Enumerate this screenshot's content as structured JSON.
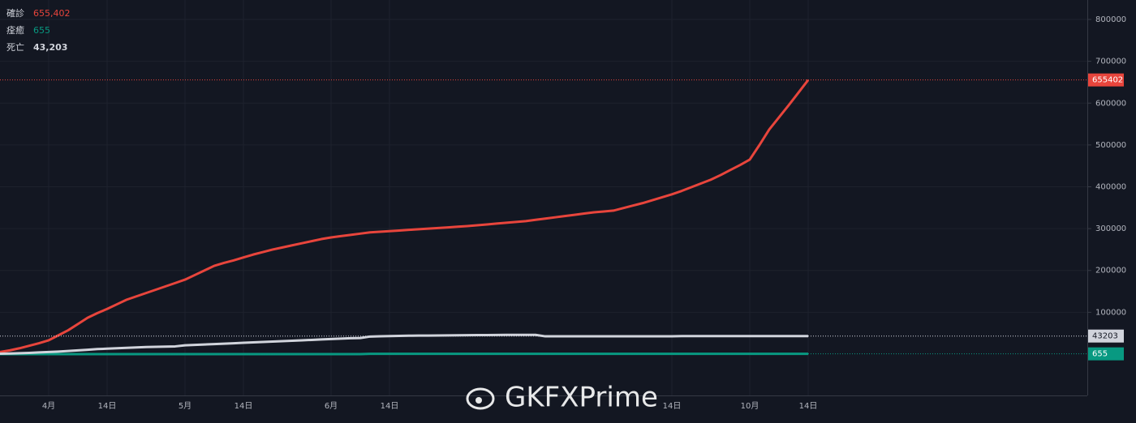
{
  "chart_data": {
    "type": "line",
    "categories": [
      null,
      null,
      null,
      null,
      null,
      "4月",
      null,
      null,
      null,
      null,
      null,
      "14日",
      null,
      null,
      null,
      null,
      null,
      null,
      null,
      "5月",
      null,
      null,
      null,
      null,
      null,
      "14日",
      null,
      null,
      null,
      null,
      null,
      null,
      null,
      null,
      "6月",
      null,
      null,
      null,
      null,
      null,
      "14日",
      null,
      null,
      null,
      null,
      null,
      null,
      null,
      null,
      null,
      null,
      null,
      null,
      null,
      null,
      null,
      null,
      null,
      null,
      null,
      null,
      null,
      null,
      null,
      null,
      null,
      null,
      null,
      null,
      "14日",
      null,
      null,
      null,
      null,
      null,
      null,
      null,
      "10月",
      null,
      null,
      null,
      null,
      null,
      "14日"
    ],
    "series": [
      {
        "name": "確診",
        "color": "#e8453c",
        "value_label": "655,402",
        "values": [
          5000,
          9000,
          14000,
          20000,
          26000,
          33000,
          45000,
          57000,
          72000,
          87000,
          98000,
          108000,
          119000,
          130000,
          138000,
          146000,
          154000,
          162000,
          170000,
          178000,
          189000,
          200000,
          211000,
          218000,
          224000,
          231000,
          238000,
          244000,
          250000,
          255000,
          260000,
          265000,
          270000,
          275000,
          279000,
          282000,
          285000,
          288000,
          291000,
          292500,
          294000,
          295500,
          297000,
          298500,
          300000,
          301500,
          303000,
          304500,
          306000,
          308000,
          310000,
          312000,
          314000,
          316000,
          318000,
          321000,
          324000,
          327000,
          330000,
          333000,
          336000,
          339000,
          341000,
          343000,
          349000,
          355000,
          361000,
          368000,
          375000,
          382000,
          390000,
          399000,
          408000,
          417000,
          428000,
          440000,
          452000,
          465000,
          500000,
          537000,
          566000,
          595000,
          625000,
          655402
        ]
      },
      {
        "name": "痊癒",
        "color": "#089981",
        "value_label": "655",
        "values": [
          100,
          100,
          100,
          100,
          100,
          100,
          100,
          100,
          100,
          100,
          100,
          100,
          100,
          100,
          100,
          100,
          100,
          100,
          100,
          100,
          100,
          100,
          100,
          100,
          100,
          100,
          100,
          100,
          100,
          100,
          100,
          100,
          100,
          100,
          100,
          100,
          100,
          100,
          655,
          655,
          655,
          655,
          655,
          655,
          655,
          655,
          655,
          655,
          655,
          655,
          655,
          655,
          655,
          655,
          655,
          655,
          655,
          655,
          655,
          655,
          655,
          655,
          655,
          655,
          655,
          655,
          655,
          655,
          655,
          655,
          655,
          655,
          655,
          655,
          655,
          655,
          655,
          655,
          655,
          655,
          655,
          655,
          655,
          655
        ]
      },
      {
        "name": "死亡",
        "color": "#d1d4dc",
        "value_label": "43,203",
        "values": [
          1000,
          1500,
          2200,
          3000,
          4000,
          5000,
          6000,
          7500,
          9000,
          10500,
          12000,
          13000,
          14000,
          15000,
          16000,
          17000,
          17500,
          18000,
          18500,
          21000,
          22000,
          23000,
          24000,
          25000,
          26000,
          27000,
          28000,
          29000,
          30000,
          31000,
          32000,
          33000,
          34000,
          35000,
          36000,
          37000,
          38000,
          38500,
          42000,
          42500,
          43000,
          43500,
          44000,
          44200,
          44400,
          44600,
          44800,
          45000,
          45200,
          45400,
          45600,
          45800,
          46000,
          46000,
          46000,
          46000,
          42500,
          42600,
          42600,
          42600,
          42600,
          42600,
          42600,
          42600,
          42600,
          42600,
          42600,
          42600,
          42600,
          42600,
          43000,
          43000,
          43000,
          43000,
          43000,
          43000,
          43000,
          43000,
          43000,
          43000,
          43000,
          43000,
          43000,
          43203
        ]
      }
    ],
    "ylim": [
      -98800,
      846500
    ],
    "yticks": [
      100000,
      200000,
      300000,
      400000,
      500000,
      600000,
      700000,
      800000
    ],
    "grid": true,
    "watermark": "GKFXPrime"
  }
}
